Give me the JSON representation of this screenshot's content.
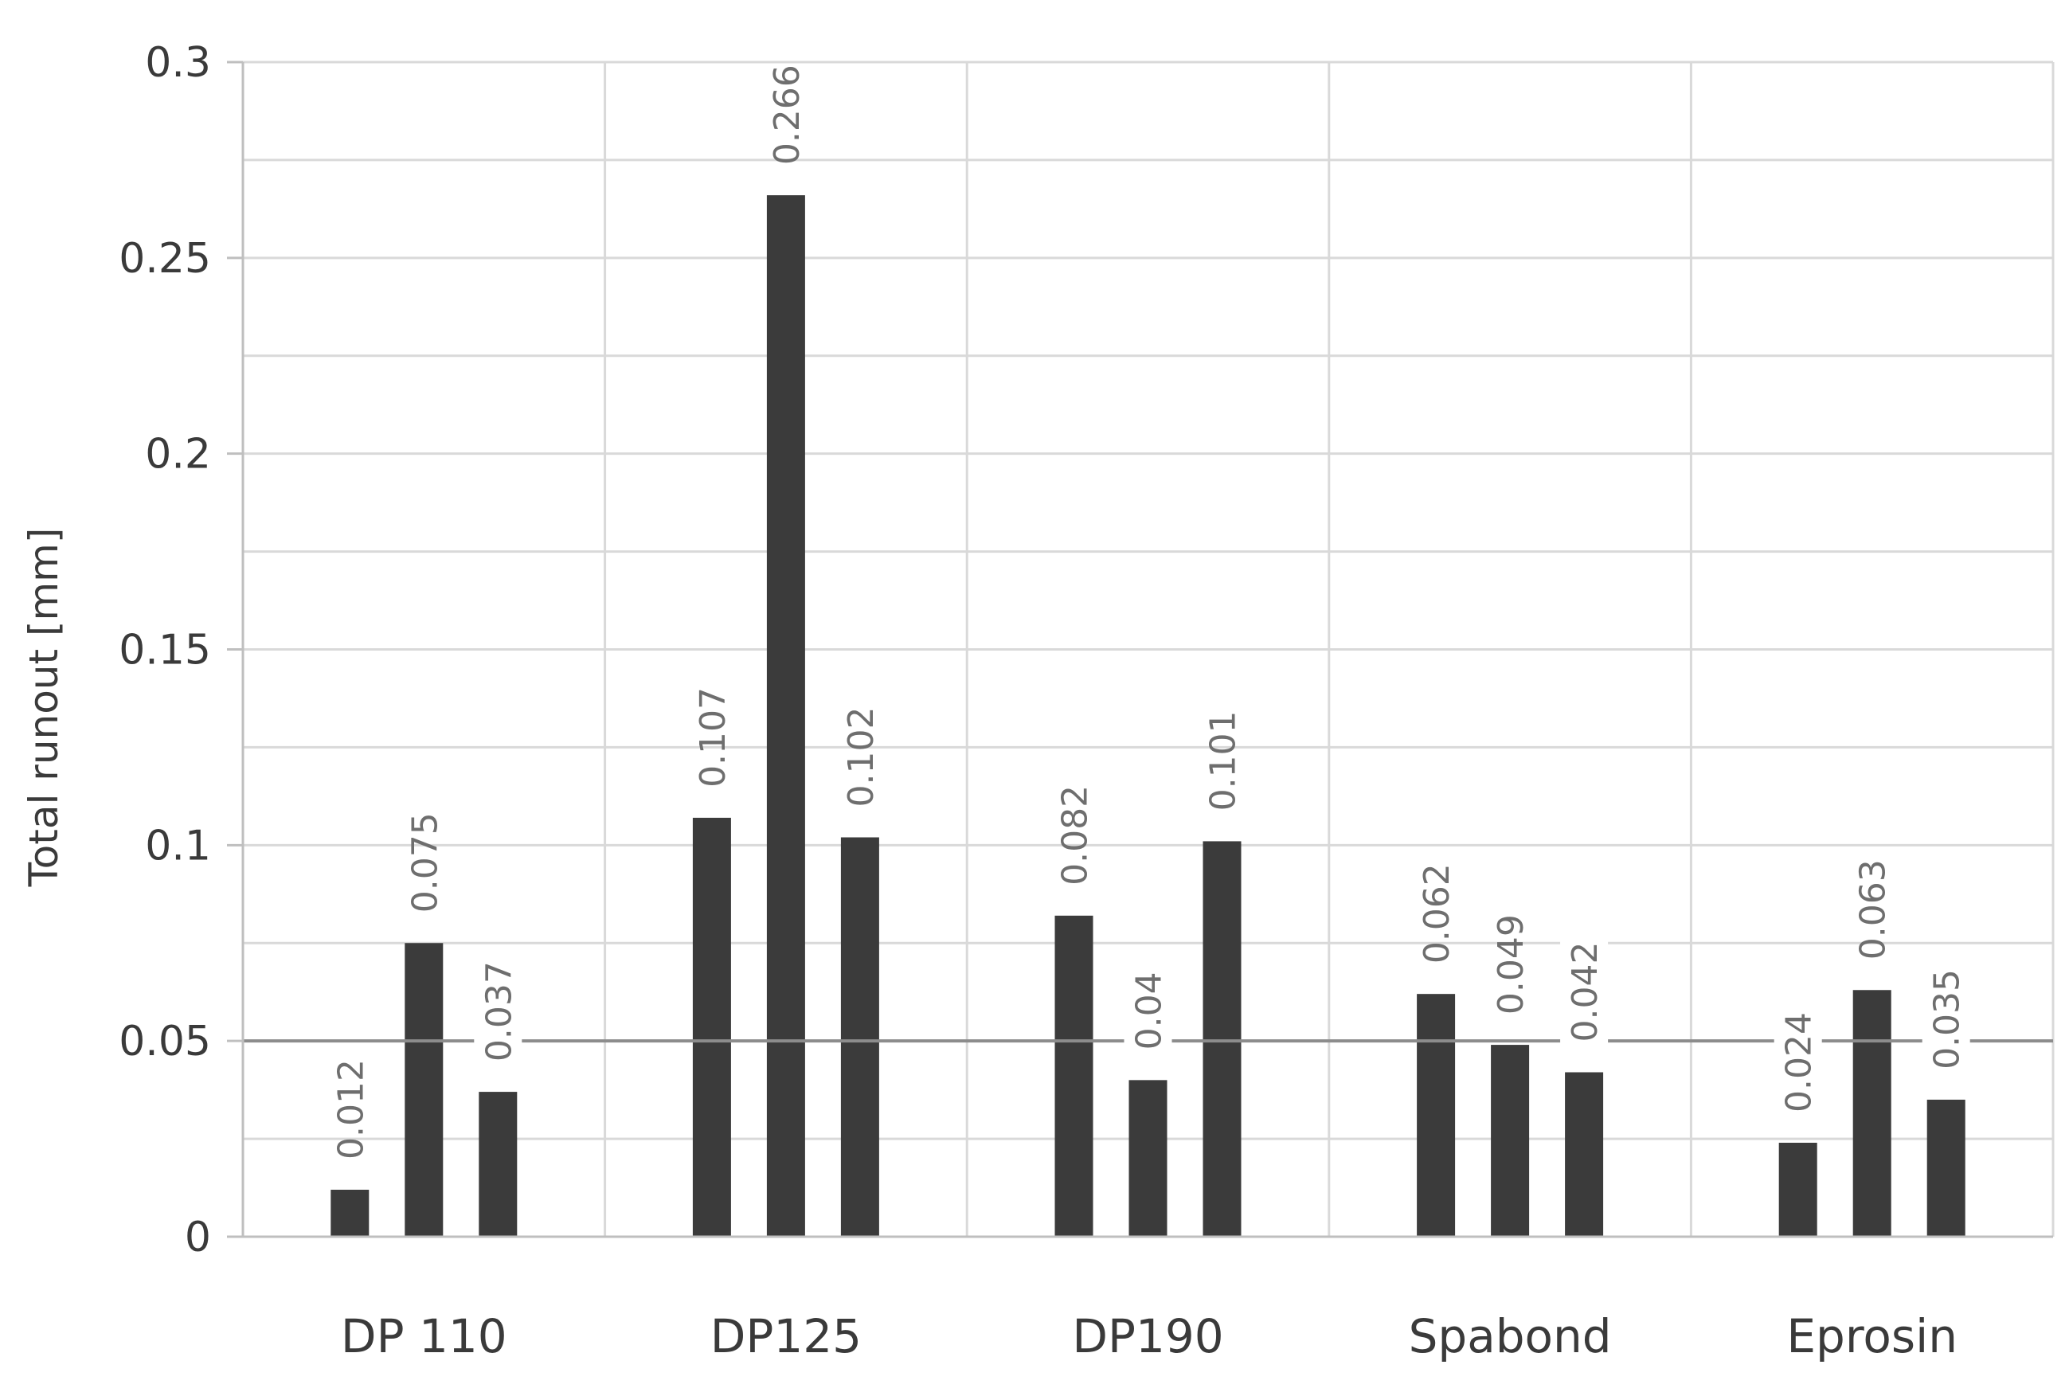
{
  "chart_data": {
    "type": "bar",
    "title": "",
    "xlabel": "",
    "ylabel": "Total runout [mm]",
    "ylim": [
      0,
      0.3
    ],
    "yticks": [
      {
        "value": 0,
        "label": "0"
      },
      {
        "value": 0.05,
        "label": "0.05"
      },
      {
        "value": 0.1,
        "label": "0.1"
      },
      {
        "value": 0.15,
        "label": "0.15"
      },
      {
        "value": 0.2,
        "label": "0.2"
      },
      {
        "value": 0.25,
        "label": "0.25"
      },
      {
        "value": 0.3,
        "label": "0.3"
      }
    ],
    "minor_gridlines_step": 0.025,
    "reference_line": {
      "value": 0.05
    },
    "categories": [
      "DP 110",
      "DP125",
      "DP190",
      "Spabond",
      "Eprosin"
    ],
    "groups": [
      {
        "category": "DP 110",
        "values": [
          0.012,
          0.075,
          0.037
        ],
        "labels": [
          "0.012",
          "0.075",
          "0.037"
        ]
      },
      {
        "category": "DP125",
        "values": [
          0.107,
          0.266,
          0.102
        ],
        "labels": [
          "0.107",
          "0.266",
          "0.102"
        ]
      },
      {
        "category": "DP190",
        "values": [
          0.082,
          0.04,
          0.101
        ],
        "labels": [
          "0.082",
          "0.04",
          "0.101"
        ]
      },
      {
        "category": "Spabond",
        "values": [
          0.062,
          0.049,
          0.042
        ],
        "labels": [
          "0.062",
          "0.049",
          "0.042"
        ]
      },
      {
        "category": "Eprosin",
        "values": [
          0.024,
          0.063,
          0.035
        ],
        "labels": [
          "0.024",
          "0.063",
          "0.035"
        ]
      }
    ],
    "colors": {
      "bar": "#3b3b3b",
      "grid": "#d9d9d9",
      "reference_line": "#8c8c8c",
      "axis": "#bfbfbf"
    }
  }
}
